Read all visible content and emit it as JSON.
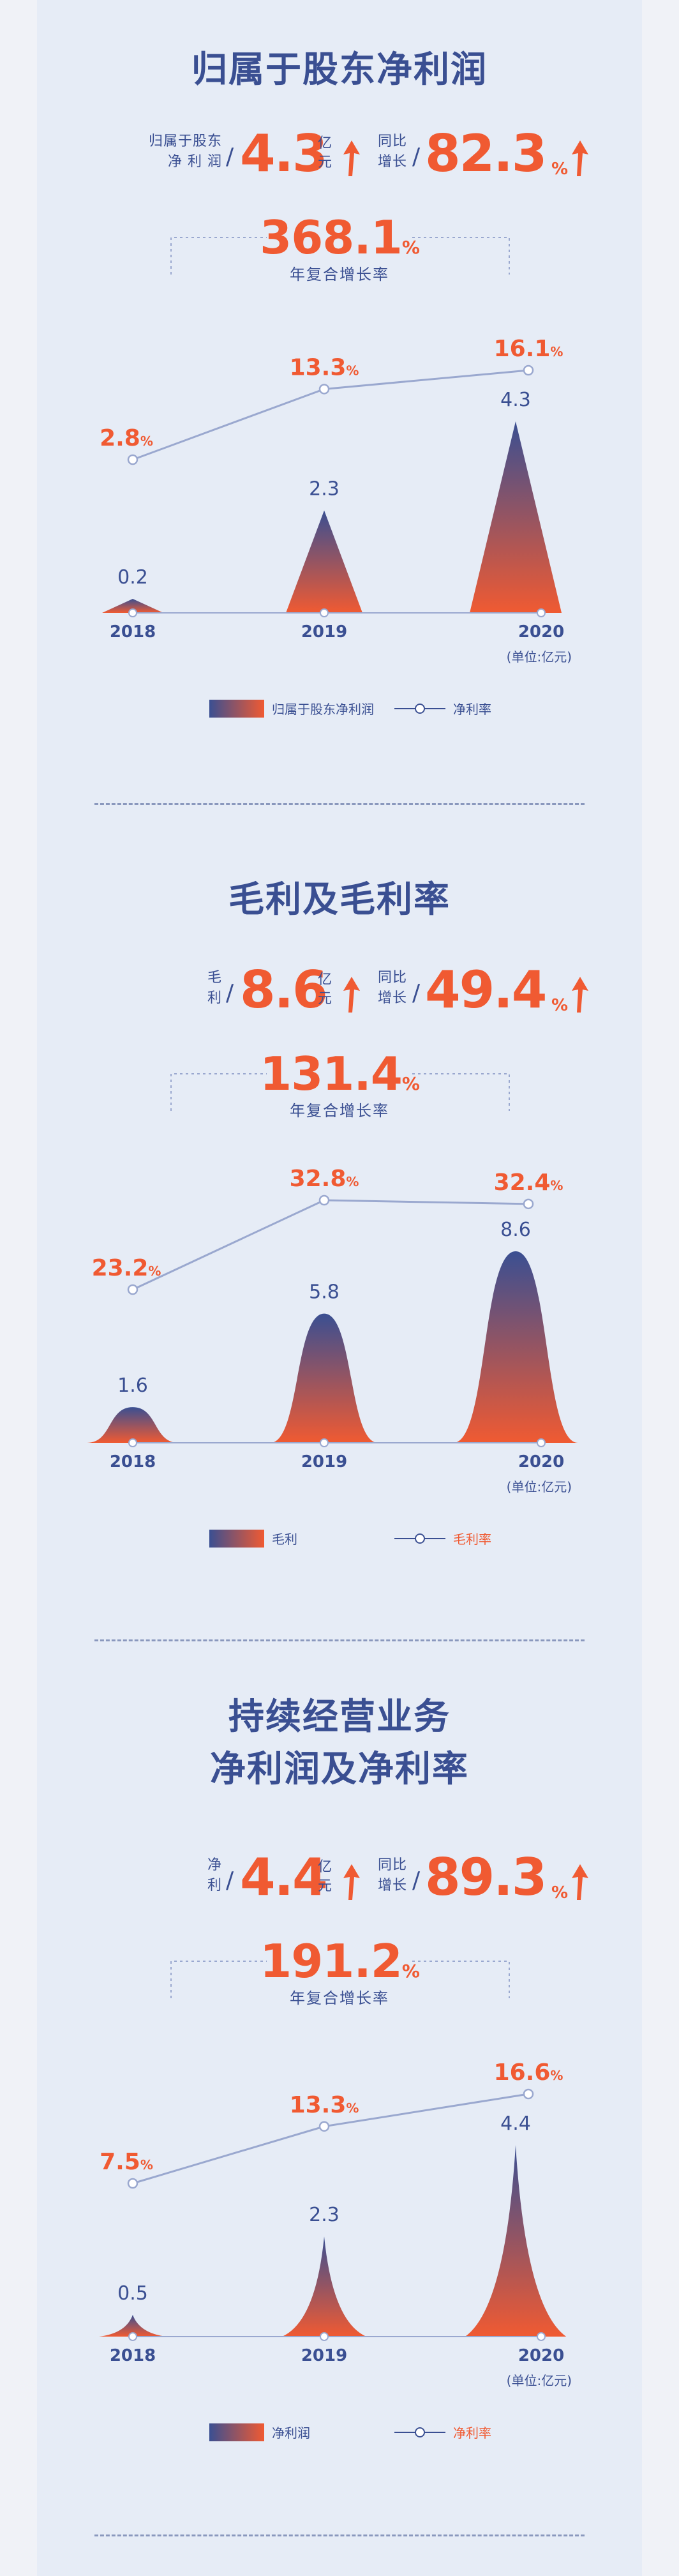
{
  "colors": {
    "navy": "#3a4f92",
    "orange": "#f05a32",
    "line": "#9aa8cf",
    "background": "#e6ecf6"
  },
  "sections": [
    {
      "title_lines": [
        "归属于股东净利润"
      ],
      "kpi_left": {
        "label_lines": [
          "归属于股东",
          "净 利 润"
        ],
        "value": "4.3",
        "unit_lines": [
          "亿",
          "元"
        ]
      },
      "kpi_right": {
        "label_lines": [
          "同比",
          "增长"
        ],
        "value": "82.3",
        "pct": "%"
      },
      "cagr": {
        "value": "368.1",
        "pct": "%",
        "label": "年复合增长率"
      },
      "unit_note": "(单位:亿元)",
      "legend": {
        "bar": "归属于股东净利润",
        "line": "净利率"
      }
    },
    {
      "title_lines": [
        "毛利及毛利率"
      ],
      "kpi_left": {
        "label_lines": [
          "毛",
          "利"
        ],
        "value": "8.6",
        "unit_lines": [
          "亿",
          "元"
        ]
      },
      "kpi_right": {
        "label_lines": [
          "同比",
          "增长"
        ],
        "value": "49.4",
        "pct": "%"
      },
      "cagr": {
        "value": "131.4",
        "pct": "%",
        "label": "年复合增长率"
      },
      "unit_note": "(单位:亿元)",
      "legend": {
        "bar": "毛利",
        "line": "毛利率"
      }
    },
    {
      "title_lines": [
        "持续经营业务",
        "净利润及净利率"
      ],
      "kpi_left": {
        "label_lines": [
          "净",
          "利"
        ],
        "value": "4.4",
        "unit_lines": [
          "亿",
          "元"
        ]
      },
      "kpi_right": {
        "label_lines": [
          "同比",
          "增长"
        ],
        "value": "89.3",
        "pct": "%"
      },
      "cagr": {
        "value": "191.2",
        "pct": "%",
        "label": "年复合增长率"
      },
      "unit_note": "(单位:亿元)",
      "legend": {
        "bar": "净利润",
        "line": "净利率"
      }
    }
  ],
  "chart_data": [
    {
      "type": "bar",
      "shape": "triangle",
      "categories": [
        "2018",
        "2019",
        "2020"
      ],
      "series": [
        {
          "name": "归属于股东净利润",
          "values": [
            0.2,
            2.3,
            4.3
          ],
          "value_labels": [
            "0.2",
            "2.3",
            "4.3"
          ]
        },
        {
          "name": "净利率",
          "type": "line",
          "values": [
            2.8,
            13.3,
            16.1
          ],
          "value_labels": [
            "2.8",
            "13.3",
            "16.1"
          ],
          "suffix": "%"
        }
      ]
    },
    {
      "type": "bar",
      "shape": "bell",
      "categories": [
        "2018",
        "2019",
        "2020"
      ],
      "series": [
        {
          "name": "毛利",
          "values": [
            1.6,
            5.8,
            8.6
          ],
          "value_labels": [
            "1.6",
            "5.8",
            "8.6"
          ]
        },
        {
          "name": "毛利率",
          "type": "line",
          "values": [
            23.2,
            32.8,
            32.4
          ],
          "value_labels": [
            "23.2",
            "32.8",
            "32.4"
          ],
          "suffix": "%"
        }
      ]
    },
    {
      "type": "bar",
      "shape": "spike",
      "categories": [
        "2018",
        "2019",
        "2020"
      ],
      "series": [
        {
          "name": "净利润",
          "values": [
            0.5,
            2.3,
            4.4
          ],
          "value_labels": [
            "0.5",
            "2.3",
            "4.4"
          ]
        },
        {
          "name": "净利率",
          "type": "line",
          "values": [
            7.5,
            13.3,
            16.6
          ],
          "value_labels": [
            "7.5",
            "13.3",
            "16.6"
          ],
          "suffix": "%"
        }
      ]
    }
  ]
}
